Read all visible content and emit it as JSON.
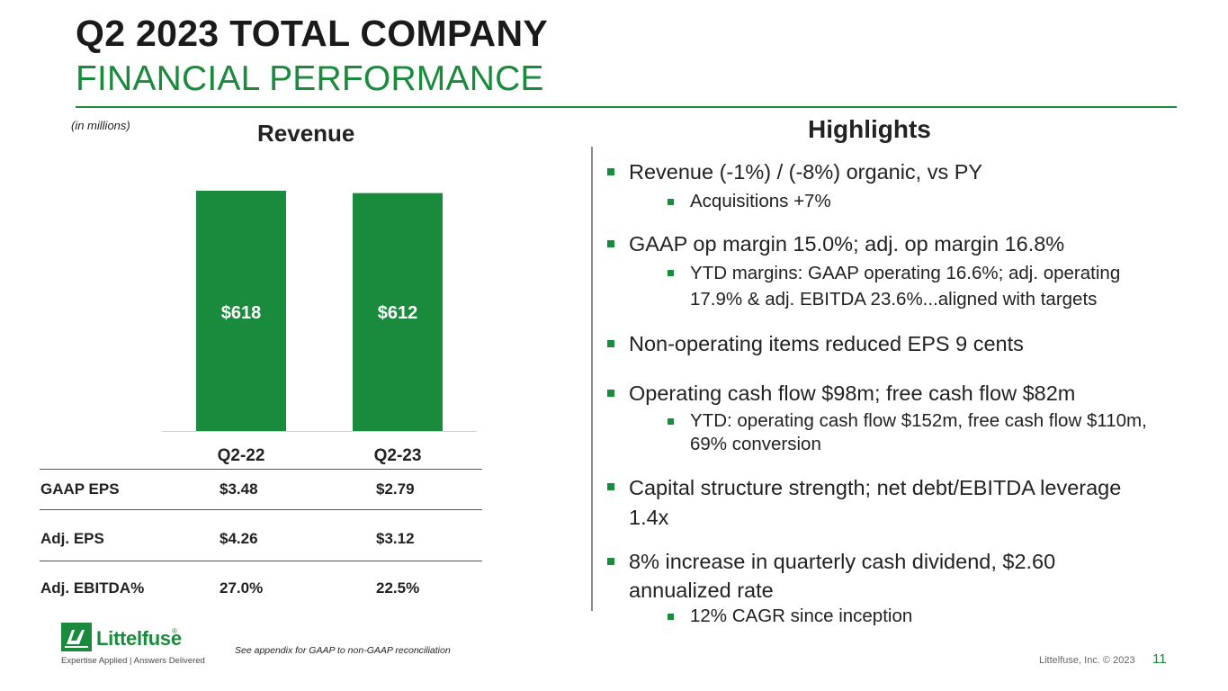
{
  "header": {
    "title_line1": "Q2 2023 TOTAL COMPANY",
    "title_line2": "FINANCIAL PERFORMANCE"
  },
  "units_note": "(in millions)",
  "chart_data": {
    "type": "bar",
    "title": "Revenue",
    "categories": [
      "Q2-22",
      "Q2-23"
    ],
    "values": [
      618,
      612
    ],
    "data_labels": [
      "$618",
      "$612"
    ],
    "xlabel": "",
    "ylabel": "",
    "ylim": [
      0,
      618
    ],
    "grid": false,
    "bar_color": "#1a8a3c"
  },
  "metrics_table": {
    "rows": [
      {
        "label": "GAAP EPS",
        "q2_22": "$3.48",
        "q2_23": "$2.79"
      },
      {
        "label": "Adj. EPS",
        "q2_22": "$4.26",
        "q2_23": "$3.12"
      },
      {
        "label": "Adj. EBITDA%",
        "q2_22": "27.0%",
        "q2_23": "22.5%"
      }
    ]
  },
  "highlights": {
    "title": "Highlights",
    "bullets": [
      {
        "text": "Revenue (-1%) / (-8%) organic, vs PY",
        "sub": [
          "Acquisitions +7%"
        ]
      },
      {
        "text": "GAAP op margin 15.0%; adj. op margin 16.8%",
        "sub_lines": [
          "YTD margins: GAAP operating 16.6%; adj. operating",
          "17.9% & adj. EBITDA 23.6%...aligned with targets"
        ]
      },
      {
        "text": "Non-operating items reduced EPS 9 cents"
      },
      {
        "text": "Operating cash flow $98m; free cash flow $82m",
        "sub_lines": [
          "YTD: operating cash flow $152m, free cash flow $110m,",
          "69% conversion"
        ]
      },
      {
        "lines": [
          "Capital structure strength; net debt/EBITDA leverage",
          "1.4x"
        ]
      },
      {
        "lines": [
          "8% increase in quarterly cash dividend, $2.60",
          "annualized rate"
        ],
        "sub": [
          "12% CAGR since inception"
        ]
      }
    ]
  },
  "logo": {
    "name": "Littelfuse",
    "tagline": "Expertise Applied | Answers Delivered"
  },
  "footer": {
    "footnote": "See appendix for GAAP to non-GAAP reconciliation",
    "copyright": "Littelfuse, Inc. © 2023",
    "page_number": "11"
  },
  "colors": {
    "accent": "#1a8a3c",
    "text": "#222222"
  }
}
